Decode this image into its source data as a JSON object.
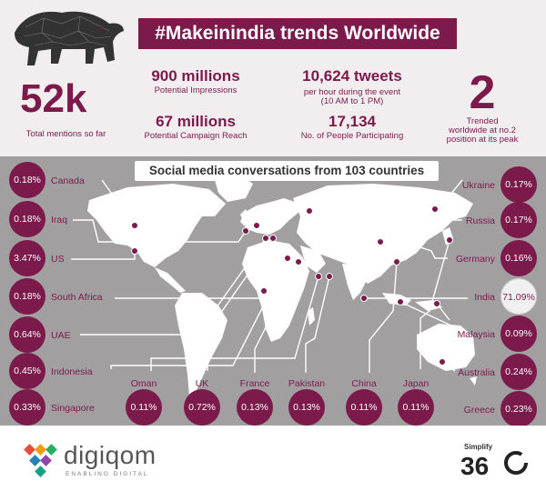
{
  "header": {
    "title": "#Makeinindia trends Worldwide"
  },
  "stats": {
    "mentions_value": "52k",
    "mentions_label": "Total mentions so far",
    "impressions_value": "900 millions",
    "impressions_label": "Potential Impressions",
    "reach_value": "67 millions",
    "reach_label": "Potential Campaign Reach",
    "tweets_value": "10,624 tweets",
    "tweets_label_1": "per hour during the event",
    "tweets_label_2": "(10 AM to 1 PM)",
    "people_value": "17,134",
    "people_label": "No. of People Participating",
    "rank_value": "2",
    "rank_label_1": "Trended",
    "rank_label_2": "worldwide at no.2",
    "rank_label_3": "position at its peak"
  },
  "map": {
    "title": "Social media conversations from 103 countries",
    "left_countries": [
      {
        "name": "Canada",
        "value": "0.18%"
      },
      {
        "name": "Iraq",
        "value": "0.18%"
      },
      {
        "name": "US",
        "value": "3.47%"
      },
      {
        "name": "South Africa",
        "value": "0.18%"
      },
      {
        "name": "UAE",
        "value": "0.64%"
      },
      {
        "name": "Indonesia",
        "value": "0.45%"
      },
      {
        "name": "Singapore",
        "value": "0.33%"
      }
    ],
    "right_countries": [
      {
        "name": "Ukraine",
        "value": "0.17%"
      },
      {
        "name": "Russia",
        "value": "0.17%"
      },
      {
        "name": "Germany",
        "value": "0.16%"
      },
      {
        "name": "India",
        "value": "71.09%"
      },
      {
        "name": "Malaysia",
        "value": "0.09%"
      },
      {
        "name": "Australia",
        "value": "0.24%"
      },
      {
        "name": "Greece",
        "value": "0.23%"
      }
    ],
    "bottom_countries": [
      {
        "name": "Oman",
        "value": "0.11%"
      },
      {
        "name": "UK",
        "value": "0.72%"
      },
      {
        "name": "France",
        "value": "0.13%"
      },
      {
        "name": "Pakistan",
        "value": "0.13%"
      },
      {
        "name": "China",
        "value": "0.11%"
      },
      {
        "name": "Japan",
        "value": "0.11%"
      }
    ]
  },
  "footer": {
    "digiqom_name": "digiqom",
    "digiqom_tag": "ENABLING DIGITAL",
    "simplify_label": "Simplify",
    "simplify_num": "36"
  },
  "colors": {
    "brand": "#7b1a4b",
    "map_bg": "#a29fa1",
    "land": "#ffffff"
  }
}
